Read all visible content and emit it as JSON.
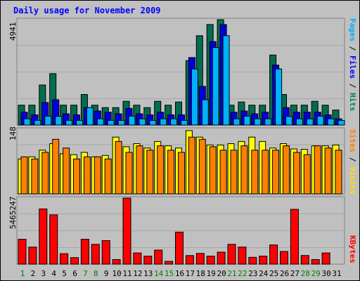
{
  "chart_data": {
    "type": "bar",
    "title": "Daily usage for November 2009",
    "x": [
      "1",
      "2",
      "3",
      "4",
      "5",
      "6",
      "7",
      "8",
      "9",
      "10",
      "11",
      "12",
      "13",
      "14",
      "15",
      "16",
      "17",
      "18",
      "19",
      "20",
      "21",
      "22",
      "23",
      "24",
      "25",
      "26",
      "27",
      "28",
      "29",
      "30",
      "31"
    ],
    "weekend_days": [
      "1",
      "7",
      "8",
      "14",
      "15",
      "21",
      "22",
      "28",
      "29"
    ],
    "panels": [
      {
        "id": "pages_files_hits",
        "ymax_label": "4941",
        "ymax": 4941,
        "right_label": [
          {
            "text": "Pages",
            "color": "#00b0ff"
          },
          {
            "text": " / ",
            "color": "#000000"
          },
          {
            "text": "Files",
            "color": "#0000ff"
          },
          {
            "text": " / ",
            "color": "#000000"
          },
          {
            "text": "Hits",
            "color": "#008060"
          }
        ],
        "series": [
          {
            "name": "Hits",
            "color": "#006d50",
            "values": [
              932,
              932,
              1879,
              2410,
              932,
              932,
              1434,
              932,
              818,
              818,
              1115,
              932,
              818,
              1115,
              932,
              1079,
              3020,
              4190,
              4714,
              4941,
              932,
              1079,
              932,
              932,
              3285,
              1434,
              932,
              932,
              1115,
              932,
              705
            ]
          },
          {
            "name": "Files",
            "color": "#0000e0",
            "values": [
              602,
              477,
              1059,
              1187,
              527,
              477,
              818,
              658,
              602,
              527,
              782,
              527,
              477,
              602,
              477,
              477,
              3165,
              1811,
              3913,
              4714,
              602,
              658,
              527,
              602,
              2810,
              818,
              602,
              602,
              602,
              477,
              292
            ]
          },
          {
            "name": "Pages",
            "color": "#00b0ff",
            "values": [
              292,
              219,
              419,
              406,
              219,
              219,
              818,
              292,
              219,
              219,
              419,
              292,
              219,
              292,
              292,
              219,
              2630,
              1187,
              3640,
              4190,
              292,
              419,
              292,
              292,
              2630,
              406,
              292,
              292,
              419,
              292,
              219
            ]
          }
        ]
      },
      {
        "id": "visits_sites",
        "ymax_label": "148",
        "ymax": 148,
        "right_label": [
          {
            "text": "Sites",
            "color": "#ff8000"
          },
          {
            "text": " / ",
            "color": "#000000"
          },
          {
            "text": "Visits",
            "color": "#ffe000"
          }
        ],
        "series": [
          {
            "name": "Visits",
            "color": "#ffff00",
            "values": [
              80,
              85,
              100,
              115,
              92,
              90,
              95,
              85,
              88,
              130,
              108,
              115,
              105,
              120,
              110,
              105,
              145,
              130,
              112,
              112,
              115,
              120,
              130,
              120,
              105,
              115,
              103,
              102,
              110,
              110,
              112
            ]
          },
          {
            "name": "Sites",
            "color": "#ff8000",
            "values": [
              85,
              80,
              95,
              125,
              105,
              80,
              85,
              85,
              80,
              120,
              95,
              110,
              100,
              110,
              100,
              95,
              130,
              125,
              108,
              100,
              100,
              110,
              100,
              100,
              100,
              110,
              95,
              90,
              110,
              105,
              100
            ]
          }
        ]
      },
      {
        "id": "kbytes",
        "ymax_label": "5465247",
        "ymax": 5465247,
        "right_label": [
          {
            "text": "KBytes",
            "color": "#ff0000"
          }
        ],
        "series": [
          {
            "name": "KBytes",
            "color": "#ff0000",
            "values": [
              2058000,
              1415000,
              4567000,
              4084000,
              868000,
              542000,
              2058000,
              1640000,
              1949000,
              376000,
              5465247,
              923000,
              661000,
              1160000,
              232000,
              2652000,
              708000,
              892000,
              661000,
              995000,
              1640000,
              1415000,
              566000,
              661000,
              1589000,
              1046000,
              4535000,
              716000,
              376000,
              923000,
              0
            ]
          }
        ]
      }
    ]
  }
}
